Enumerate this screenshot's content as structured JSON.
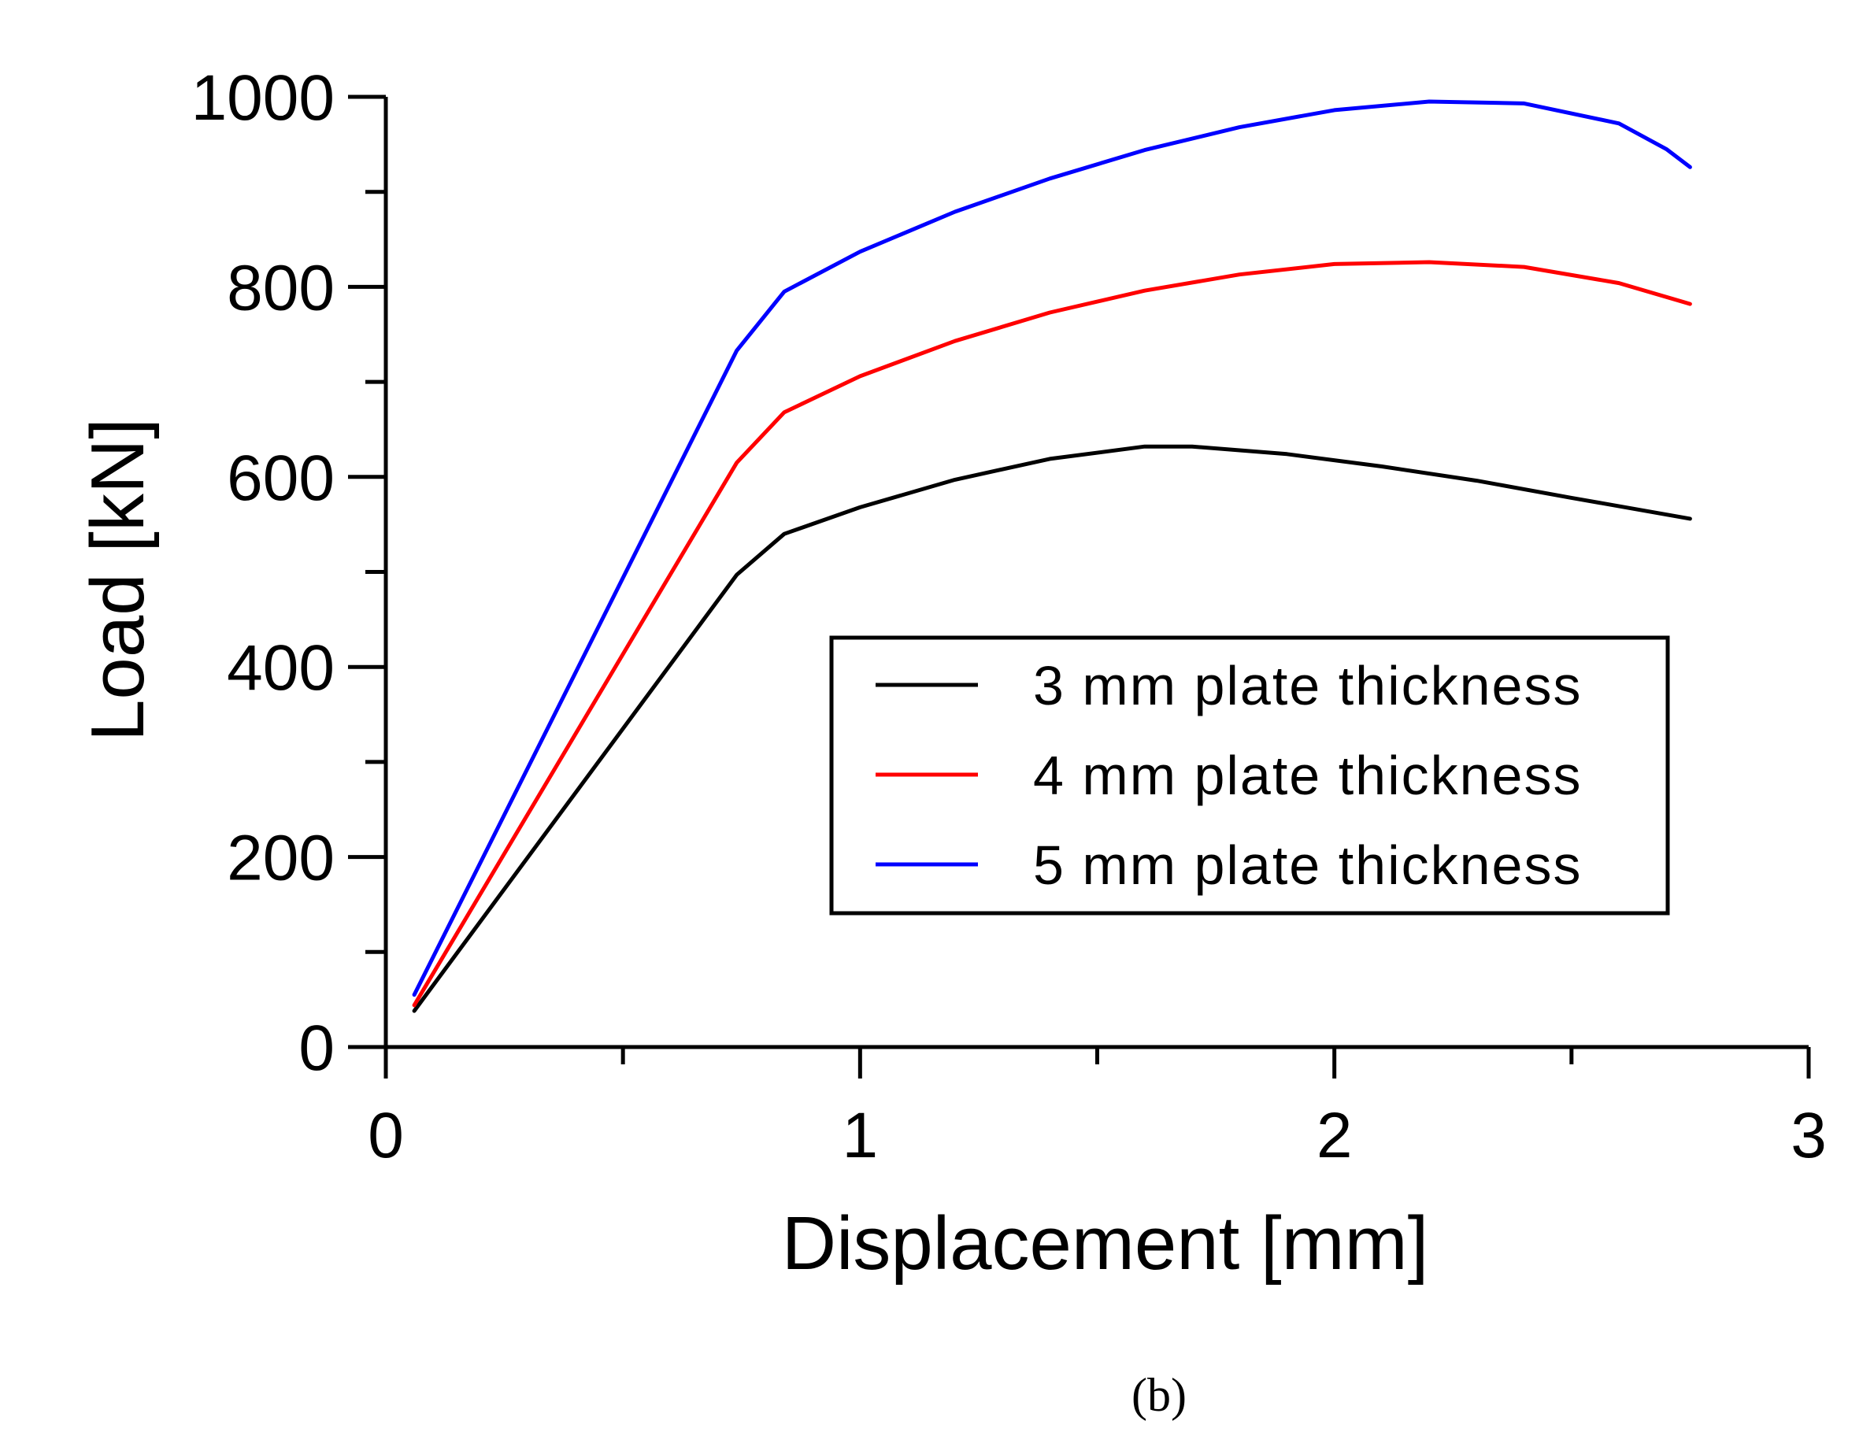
{
  "chart_data": {
    "type": "line",
    "title": "",
    "xlabel": "Displacement [mm]",
    "ylabel": "Load [kN]",
    "xlim": [
      0,
      3
    ],
    "ylim": [
      0,
      1000
    ],
    "x_ticks": [
      0,
      1,
      2,
      3
    ],
    "y_ticks": [
      0,
      200,
      400,
      600,
      800,
      1000
    ],
    "x_ticks_minor": [
      0.5,
      1.5,
      2.5
    ],
    "y_ticks_minor": [
      100,
      300,
      500,
      700,
      900
    ],
    "grid": false,
    "legend_position": "center-right",
    "series": [
      {
        "name": "3 mm plate thickness",
        "color": "#000000",
        "x": [
          0.06,
          0.74,
          0.84,
          1.0,
          1.2,
          1.4,
          1.6,
          1.7,
          1.9,
          2.1,
          2.3,
          2.5,
          2.75
        ],
        "y": [
          38,
          497,
          540,
          568,
          597,
          619,
          632,
          632,
          624,
          611,
          596,
          578,
          556
        ]
      },
      {
        "name": "4 mm plate thickness",
        "color": "#ff0000",
        "x": [
          0.06,
          0.74,
          0.84,
          1.0,
          1.2,
          1.4,
          1.6,
          1.8,
          2.0,
          2.2,
          2.4,
          2.6,
          2.75
        ],
        "y": [
          44,
          615,
          668,
          706,
          743,
          773,
          796,
          813,
          824,
          826,
          821,
          804,
          782
        ]
      },
      {
        "name": "5 mm plate thickness",
        "color": "#0000ff",
        "x": [
          0.06,
          0.74,
          0.84,
          1.0,
          1.2,
          1.4,
          1.6,
          1.8,
          2.0,
          2.2,
          2.4,
          2.6,
          2.7,
          2.75
        ],
        "y": [
          55,
          733,
          795,
          837,
          879,
          914,
          944,
          968,
          986,
          995,
          993,
          972,
          945,
          926
        ]
      }
    ]
  },
  "caption": "(b)"
}
